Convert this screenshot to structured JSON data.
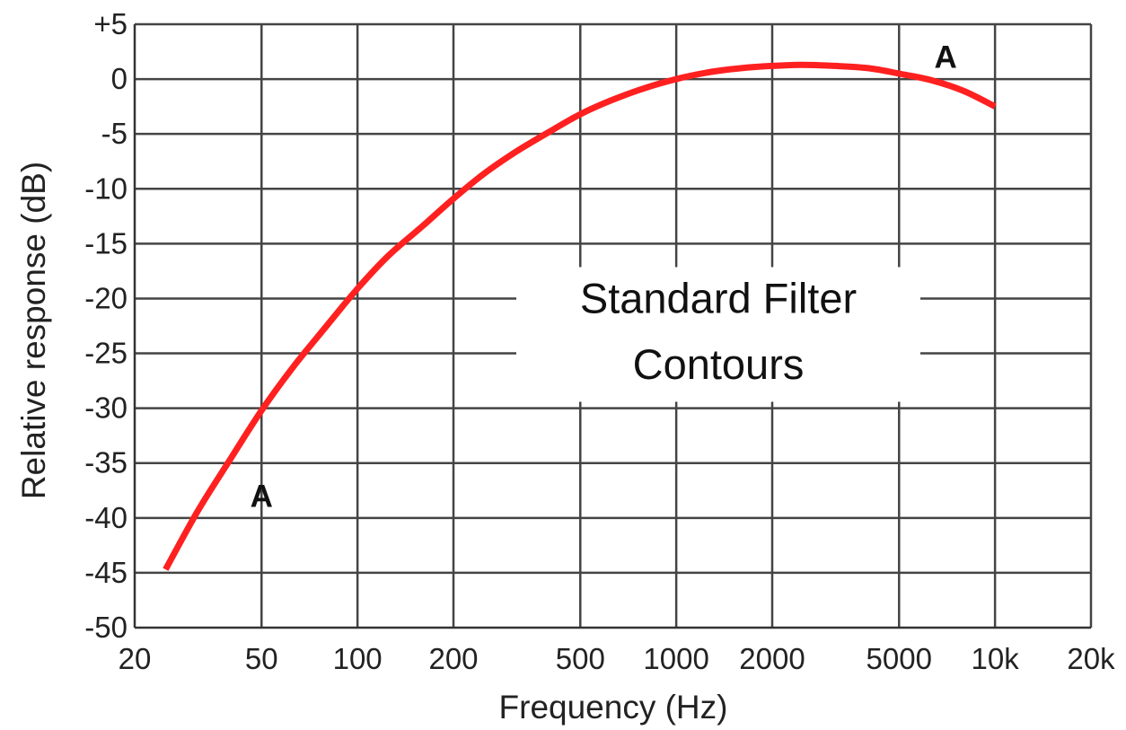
{
  "chart_data": {
    "type": "line",
    "title": "",
    "xlabel": "Frequency (Hz)",
    "ylabel": "Relative response (dB)",
    "x_scale": "log",
    "xlim": [
      20,
      20000
    ],
    "ylim": [
      -50,
      5
    ],
    "grid": true,
    "x_ticks": [
      {
        "value": 20,
        "label": "20"
      },
      {
        "value": 50,
        "label": "50"
      },
      {
        "value": 100,
        "label": "100"
      },
      {
        "value": 200,
        "label": "200"
      },
      {
        "value": 500,
        "label": "500"
      },
      {
        "value": 1000,
        "label": "1000"
      },
      {
        "value": 2000,
        "label": "2000"
      },
      {
        "value": 5000,
        "label": "5000"
      },
      {
        "value": 10000,
        "label": "10k"
      },
      {
        "value": 20000,
        "label": "20k"
      }
    ],
    "y_ticks": [
      {
        "value": 5,
        "label": "+5"
      },
      {
        "value": 0,
        "label": "0"
      },
      {
        "value": -5,
        "label": "-5"
      },
      {
        "value": -10,
        "label": "-10"
      },
      {
        "value": -15,
        "label": "-15"
      },
      {
        "value": -20,
        "label": "-20"
      },
      {
        "value": -25,
        "label": "-25"
      },
      {
        "value": -30,
        "label": "-30"
      },
      {
        "value": -35,
        "label": "-35"
      },
      {
        "value": -40,
        "label": "-40"
      },
      {
        "value": -45,
        "label": "-45"
      },
      {
        "value": -50,
        "label": "-50"
      }
    ],
    "series": [
      {
        "color": "#ff2020",
        "x": [
          25,
          31.5,
          40,
          50,
          63,
          80,
          100,
          125,
          160,
          200,
          250,
          315,
          400,
          500,
          630,
          800,
          1000,
          1250,
          1600,
          2000,
          2500,
          3150,
          4000,
          5000,
          6300,
          8000,
          10000
        ],
        "y": [
          -44.7,
          -39.4,
          -34.6,
          -30.2,
          -26.2,
          -22.5,
          -19.1,
          -16.1,
          -13.4,
          -10.9,
          -8.6,
          -6.6,
          -4.8,
          -3.2,
          -1.9,
          -0.8,
          0,
          0.6,
          1.0,
          1.2,
          1.3,
          1.2,
          1.0,
          0.5,
          -0.1,
          -1.1,
          -2.5
        ]
      }
    ],
    "annotations": [
      {
        "text": "Standard Filter",
        "x": 2000,
        "y": -20
      },
      {
        "text": "Contours",
        "x": 2000,
        "y": -26
      }
    ],
    "curve_labels": [
      {
        "text": "A",
        "x": 50,
        "y": -38
      },
      {
        "text": "A",
        "x": 7000,
        "y": 2
      }
    ]
  }
}
